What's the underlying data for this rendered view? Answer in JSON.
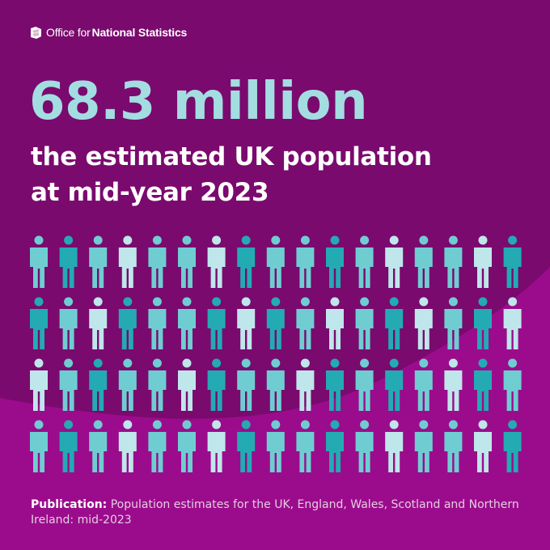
{
  "logo": {
    "org_part1": "Office for",
    "org_part2": "National Statistics"
  },
  "headline": {
    "figure": "68.3 million",
    "line1": "the estimated UK population",
    "line2": "at mid-year 2023"
  },
  "pictogram": {
    "icon": "person-icon",
    "rows": 4,
    "columns": 17,
    "colors": {
      "light": "#bfe6ea",
      "mid": "#6fcdd2",
      "dark": "#23aab3"
    },
    "pattern": [
      [
        "mid",
        "dark",
        "mid",
        "light",
        "mid",
        "mid",
        "light",
        "dark",
        "mid",
        "mid",
        "dark",
        "mid",
        "light",
        "mid",
        "mid",
        "light",
        "dark"
      ],
      [
        "dark",
        "mid",
        "light",
        "dark",
        "mid",
        "mid",
        "dark",
        "light",
        "dark",
        "mid",
        "light",
        "mid",
        "dark",
        "light",
        "mid",
        "dark",
        "light"
      ],
      [
        "light",
        "mid",
        "dark",
        "mid",
        "mid",
        "light",
        "dark",
        "mid",
        "mid",
        "light",
        "dark",
        "mid",
        "dark",
        "mid",
        "light",
        "dark",
        "mid"
      ],
      [
        "mid",
        "dark",
        "mid",
        "light",
        "mid",
        "mid",
        "light",
        "dark",
        "mid",
        "mid",
        "dark",
        "mid",
        "light",
        "mid",
        "mid",
        "light",
        "dark"
      ]
    ]
  },
  "footer": {
    "label": "Publication:",
    "text": " Population estimates for the UK, England, Wales, Scotland and Northern Ireland: mid-2023"
  },
  "colors": {
    "background": "#7a0a6e",
    "wave": "#9b0c8c",
    "headline": "#a3dde1",
    "text": "#ffffff"
  }
}
